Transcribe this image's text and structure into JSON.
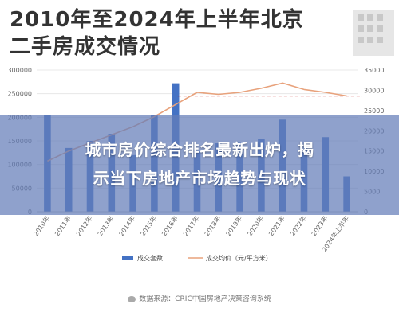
{
  "header": {
    "title_line1": "2010年至2024年上半年北京",
    "title_line2": "二手房成交情况"
  },
  "banner": {
    "line1": "城市房价综合排名最新出炉，揭",
    "line2": "示当下房地产市场趋势与现状"
  },
  "footer": {
    "source_text": "数据来源：CRIC中国房地产决策咨询系统"
  },
  "colors": {
    "bar": "#4472c4",
    "line": "#e8a27c",
    "reference_line": "#c00000",
    "banner": "#647db9"
  },
  "chart_data": {
    "type": "bar",
    "categories": [
      "2010年",
      "2011年",
      "2012年",
      "2013年",
      "2014年",
      "2015年",
      "2016年",
      "2017年",
      "2018年",
      "2019年",
      "2020年",
      "2021年",
      "2022年",
      "2023年",
      "2024年上半年"
    ],
    "series": [
      {
        "name": "成交套数",
        "type": "bar",
        "axis": "left",
        "values": [
          205000,
          135000,
          150000,
          165000,
          120000,
          205000,
          272000,
          130000,
          145000,
          148000,
          155000,
          195000,
          135000,
          158000,
          75000
        ]
      },
      {
        "name": "成交均价（元/平方米）",
        "type": "line",
        "axis": "right",
        "values": [
          12500,
          15000,
          17000,
          19000,
          21000,
          23500,
          26500,
          29500,
          29000,
          29500,
          30500,
          31800,
          30200,
          29500,
          28600
        ]
      }
    ],
    "reference_line": {
      "axis": "right",
      "value": 28600,
      "style": "dashed"
    },
    "y_left": {
      "range": [
        0,
        300000
      ],
      "ticks": [
        "0",
        "50000",
        "100000",
        "150000",
        "200000",
        "250000",
        "300000"
      ]
    },
    "y_right": {
      "range": [
        0,
        35000
      ],
      "ticks": [
        "0",
        "5000",
        "10000",
        "15000",
        "20000",
        "25000",
        "30000",
        "35000"
      ]
    },
    "grid": true,
    "legend_position": "bottom"
  }
}
